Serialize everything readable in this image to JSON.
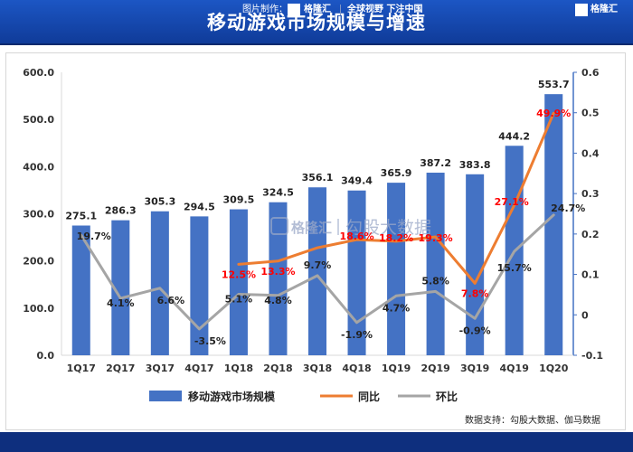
{
  "header": {
    "title": "移动游戏市场规模与增速"
  },
  "watermark": {
    "brand": "格隆汇",
    "text": "勾股大数据"
  },
  "source": {
    "text": "数据支持：勾股大数据、伽马数据"
  },
  "footer": {
    "made_by": "图片制作：",
    "brand": "格隆汇",
    "slogan": "全球视野 下注中国",
    "right_brand": "格隆汇"
  },
  "colors": {
    "bar": "#4472c4",
    "yoy": "#ed7d31",
    "qoq": "#a5a5a5",
    "label_red": "#ff0000",
    "header": "#1446b0"
  },
  "chart_data": {
    "type": "bar",
    "categories": [
      "1Q17",
      "2Q17",
      "3Q17",
      "4Q17",
      "1Q18",
      "2Q18",
      "3Q18",
      "4Q18",
      "1Q19",
      "2Q19",
      "3Q19",
      "4Q19",
      "1Q20"
    ],
    "y_left": {
      "range": [
        0,
        600
      ],
      "ticks": [
        "0.0",
        "100.0",
        "200.0",
        "300.0",
        "400.0",
        "500.0",
        "600.0"
      ]
    },
    "y_right": {
      "range": [
        -0.1,
        0.6
      ],
      "ticks": [
        "-0.1",
        "0",
        "0.1",
        "0.2",
        "0.3",
        "0.4",
        "0.5",
        "0.6"
      ]
    },
    "legend_position": "bottom",
    "series": [
      {
        "name": "移动游戏市场规模",
        "type": "bar",
        "axis": "left",
        "values": [
          275.1,
          286.3,
          305.3,
          294.5,
          309.5,
          324.5,
          356.1,
          349.4,
          365.9,
          387.2,
          383.8,
          444.2,
          553.7
        ],
        "labels": [
          "275.1",
          "286.3",
          "305.3",
          "294.5",
          "309.5",
          "324.5",
          "356.1",
          "349.4",
          "365.9",
          "387.2",
          "383.8",
          "444.2",
          "553.7"
        ]
      },
      {
        "name": "同比",
        "type": "line",
        "axis": "right",
        "values": [
          null,
          null,
          null,
          null,
          0.125,
          0.133,
          0.166,
          0.186,
          0.182,
          0.193,
          0.078,
          0.271,
          0.499
        ],
        "labels": [
          "",
          "",
          "",
          "",
          "12.5%",
          "13.3%",
          "",
          "18.6%",
          "18.2%",
          "19.3%",
          "7.8%",
          "27.1%",
          "49.9%"
        ]
      },
      {
        "name": "环比",
        "type": "line",
        "axis": "right",
        "values": [
          0.197,
          0.041,
          0.066,
          -0.035,
          0.051,
          0.048,
          0.097,
          -0.019,
          0.047,
          0.058,
          -0.009,
          0.157,
          0.247
        ],
        "labels": [
          "19.7%",
          "4.1%",
          "6.6%",
          "-3.5%",
          "5.1%",
          "4.8%",
          "9.7%",
          "-1.9%",
          "4.7%",
          "5.8%",
          "-0.9%",
          "15.7%",
          "24.7%"
        ]
      }
    ]
  }
}
